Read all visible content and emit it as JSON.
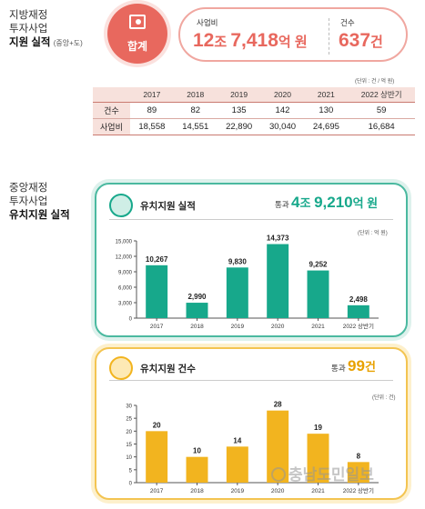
{
  "section1": {
    "line1": "지방재정",
    "line2": "투자사업",
    "line3": "지원 실적",
    "line3_small": "(중앙+도)"
  },
  "summary": {
    "circle_label": "합계",
    "budget_label": "사업비",
    "budget_num1": "12",
    "budget_unit1": "조 ",
    "budget_num2": "7,418",
    "budget_unit2": "억 원",
    "count_label": "건수",
    "count_num": "637",
    "count_unit": "건"
  },
  "table": {
    "unit_note": "(단위 : 건 / 억 원)",
    "headers": [
      "",
      "2017",
      "2018",
      "2019",
      "2020",
      "2021",
      "2022 상반기"
    ],
    "rows": [
      {
        "label": "건수",
        "values": [
          "89",
          "82",
          "135",
          "142",
          "130",
          "59"
        ]
      },
      {
        "label": "사업비",
        "values": [
          "18,558",
          "14,551",
          "22,890",
          "30,040",
          "24,695",
          "16,684"
        ]
      }
    ]
  },
  "section2": {
    "line1": "중앙재정",
    "line2": "투자사업",
    "line3": "유치지원 실적"
  },
  "panel_amount": {
    "title": "유치지원 실적",
    "total_prefix": "통과",
    "total_num1": "4",
    "total_unit1": "조 ",
    "total_num2": "9,210",
    "total_unit2": "억 원",
    "unit_note": "(단위 : 억 원)",
    "accent": "#17a88b"
  },
  "panel_count": {
    "title": "유치지원 건수",
    "total_prefix": "통과",
    "total_num": "99",
    "total_unit": "건",
    "unit_note": "(단위 : 건)",
    "accent": "#f2b41f"
  },
  "watermark": "충남도민일보",
  "chart_data": [
    {
      "type": "bar",
      "title": "유치지원 실적",
      "categories": [
        "2017",
        "2018",
        "2019",
        "2020",
        "2021",
        "2022 상반기"
      ],
      "values": [
        10267,
        2990,
        9830,
        14373,
        9252,
        2498
      ],
      "value_labels": [
        "10,267",
        "2,990",
        "9,830",
        "14,373",
        "9,252",
        "2,498"
      ],
      "ylim": [
        0,
        15000
      ],
      "yticks": [
        0,
        3000,
        6000,
        9000,
        12000,
        15000
      ],
      "ytick_labels": [
        "0",
        "3,000",
        "6,000",
        "9,000",
        "12,000",
        "15,000"
      ],
      "color": "#17a88b"
    },
    {
      "type": "bar",
      "title": "유치지원 건수",
      "categories": [
        "2017",
        "2018",
        "2019",
        "2020",
        "2021",
        "2022 상반기"
      ],
      "values": [
        20,
        10,
        14,
        28,
        19,
        8
      ],
      "value_labels": [
        "20",
        "10",
        "14",
        "28",
        "19",
        "8"
      ],
      "ylim": [
        0,
        30
      ],
      "yticks": [
        0,
        5,
        10,
        15,
        20,
        25,
        30
      ],
      "ytick_labels": [
        "0",
        "5",
        "10",
        "15",
        "20",
        "25",
        "30"
      ],
      "color": "#f2b41f"
    }
  ]
}
